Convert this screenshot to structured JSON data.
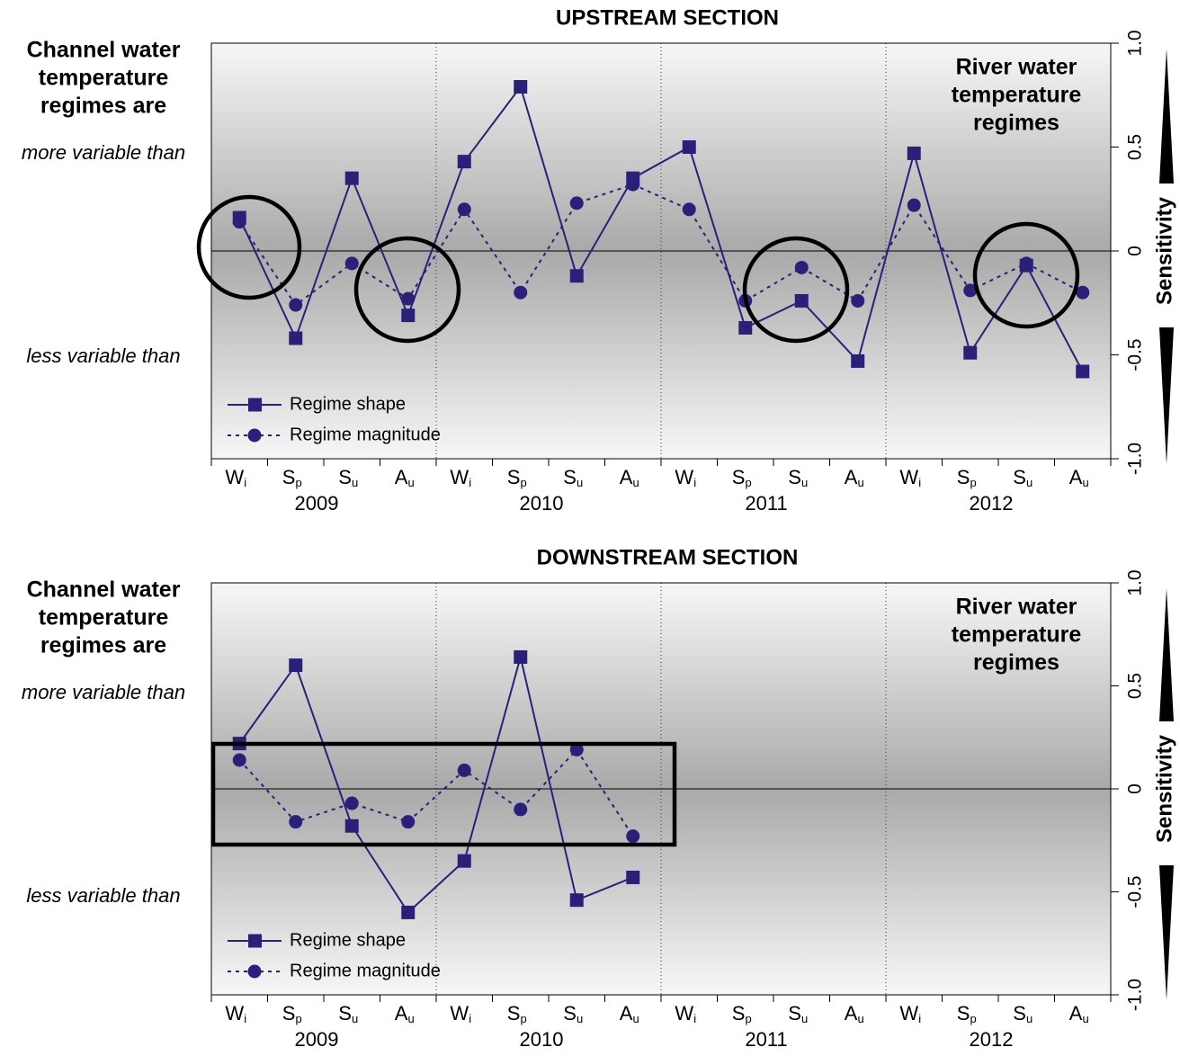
{
  "chart_data": [
    {
      "type": "line",
      "title": "UPSTREAM SECTION",
      "left_title": [
        "Channel water",
        "temperature",
        "regimes are"
      ],
      "upper_note": "more variable than",
      "lower_note": "less variable than",
      "right_title": [
        "River water",
        "temperature",
        "regimes"
      ],
      "y_label": "Sensitivity",
      "categories": [
        "Wi",
        "Sp",
        "Su",
        "Au",
        "Wi",
        "Sp",
        "Su",
        "Au",
        "Wi",
        "Sp",
        "Su",
        "Au",
        "Wi",
        "Sp",
        "Su",
        "Au"
      ],
      "groups": [
        "2009",
        "2010",
        "2011",
        "2012"
      ],
      "ylim": [
        -1,
        1
      ],
      "yticks": [
        {
          "value": -1,
          "label": "-1.0"
        },
        -0.5,
        0,
        0.5,
        {
          "value": 1,
          "label": "1.0"
        }
      ],
      "legend": "lower left",
      "series": [
        {
          "name": "Regime shape",
          "color": "#2a2079",
          "marker": "square",
          "linestyle": "solid",
          "values": [
            0.16,
            -0.42,
            0.35,
            -0.31,
            0.43,
            0.79,
            -0.12,
            0.35,
            0.5,
            -0.37,
            -0.24,
            -0.53,
            0.47,
            -0.49,
            -0.07,
            -0.58
          ]
        },
        {
          "name": "Regime magnitude",
          "color": "#2a2079",
          "marker": "circle",
          "linestyle": "dotted",
          "values": [
            0.14,
            -0.26,
            -0.06,
            -0.23,
            0.2,
            -0.2,
            0.23,
            0.32,
            0.2,
            -0.24,
            -0.08,
            -0.24,
            0.22,
            -0.19,
            -0.06,
            -0.2
          ]
        }
      ]
    },
    {
      "type": "line",
      "title": "DOWNSTREAM SECTION",
      "left_title": [
        "Channel water",
        "temperature",
        "regimes are"
      ],
      "upper_note": "more variable than",
      "lower_note": "less variable than",
      "right_title": [
        "River water",
        "temperature",
        "regimes"
      ],
      "y_label": "Sensitivity",
      "categories": [
        "Wi",
        "Sp",
        "Su",
        "Au",
        "Wi",
        "Sp",
        "Su",
        "Au",
        "Wi",
        "Sp",
        "Su",
        "Au",
        "Wi",
        "Sp",
        "Su",
        "Au"
      ],
      "groups": [
        "2009",
        "2010",
        "2011",
        "2012"
      ],
      "ylim": [
        -1,
        1
      ],
      "yticks": [
        {
          "value": -1,
          "label": "-1.0"
        },
        -0.5,
        0,
        0.5,
        {
          "value": 1,
          "label": "1.0"
        }
      ],
      "legend": "lower left",
      "series": [
        {
          "name": "Regime shape",
          "color": "#2a2079",
          "marker": "square",
          "linestyle": "solid",
          "values": [
            0.22,
            0.6,
            -0.18,
            -0.6,
            -0.35,
            0.64,
            -0.54,
            -0.43,
            null,
            null,
            null,
            null,
            null,
            null,
            null,
            null
          ]
        },
        {
          "name": "Regime magnitude",
          "color": "#2a2079",
          "marker": "circle",
          "linestyle": "dotted",
          "values": [
            0.14,
            -0.16,
            -0.07,
            -0.16,
            0.09,
            -0.1,
            0.19,
            -0.23,
            null,
            null,
            null,
            null,
            null,
            null,
            null,
            null
          ]
        }
      ]
    }
  ]
}
